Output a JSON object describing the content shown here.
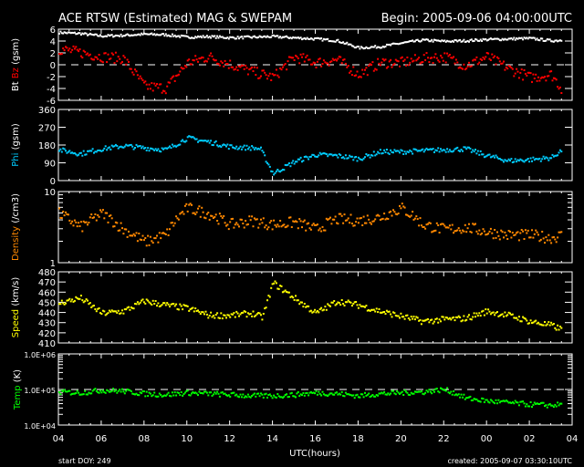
{
  "title": "ACE RTSW (Estimated) MAG & SWEPAM",
  "begin": "Begin: 2005-09-06 04:00:00UTC",
  "footer": {
    "start_doy": "start DOY: 249",
    "created": "created: 2005-09-07 03:30:10UTC"
  },
  "chart_data": [
    {
      "type": "scatter",
      "id": "mag",
      "ylabel_parts": [
        "Bt",
        "Bz",
        "(gsm)"
      ],
      "ylabel_colors": [
        "#ffffff",
        "#ff0000",
        "#ffffff"
      ],
      "ylim": [
        -6,
        6
      ],
      "scale": "linear",
      "yticks": [
        "6",
        "4",
        "2",
        "0",
        "-2",
        "-4",
        "-6"
      ],
      "ytick_values": [
        6,
        4,
        2,
        0,
        -2,
        -4,
        -6
      ],
      "reference_line": 0,
      "series": [
        {
          "name": "Bt",
          "color": "#ffffff",
          "spread": 0.2,
          "hours": [
            0,
            1,
            2,
            3,
            4,
            5,
            6,
            7,
            8,
            9,
            10,
            11,
            12,
            13,
            14,
            15,
            16,
            17,
            18,
            19,
            20,
            21,
            22,
            23,
            23.5
          ],
          "values": [
            5.6,
            5.4,
            5.0,
            5.1,
            5.3,
            5.2,
            4.8,
            4.9,
            4.7,
            4.8,
            4.9,
            4.7,
            4.5,
            4.2,
            3.0,
            3.2,
            3.8,
            4.3,
            4.1,
            4.2,
            4.4,
            4.5,
            4.6,
            4.2,
            4.3
          ]
        },
        {
          "name": "Bz",
          "color": "#ff0000",
          "spread": 0.9,
          "hours": [
            0,
            1,
            2,
            3,
            4,
            5,
            6,
            7,
            8,
            9,
            10,
            11,
            12,
            13,
            14,
            15,
            16,
            17,
            18,
            19,
            20,
            21,
            22,
            23,
            23.5
          ],
          "values": [
            2.8,
            2.2,
            1.5,
            1.2,
            -3.5,
            -3.8,
            0.5,
            1.5,
            0.2,
            -1.0,
            -2.0,
            1.5,
            0.5,
            1.0,
            -1.5,
            0.5,
            0.5,
            1.2,
            1.5,
            0.0,
            1.5,
            -0.5,
            -2.0,
            -1.5,
            -4.0
          ]
        }
      ]
    },
    {
      "type": "scatter",
      "id": "phi",
      "ylabel_parts": [
        "Phi",
        "(gsm)"
      ],
      "ylabel_colors": [
        "#00ccff",
        "#ffffff"
      ],
      "ylim": [
        0,
        360
      ],
      "scale": "linear",
      "yticks": [
        "360",
        "270",
        "180",
        "90",
        "0"
      ],
      "ytick_values": [
        360,
        270,
        180,
        90,
        0
      ],
      "series": [
        {
          "name": "Phi",
          "color": "#00ccff",
          "spread": 12,
          "hours": [
            0,
            1,
            2,
            3,
            4,
            5,
            6,
            7,
            8,
            9,
            9.4,
            10,
            11,
            12,
            13,
            14,
            15,
            16,
            17,
            18,
            19,
            20,
            21,
            22,
            23,
            23.5
          ],
          "values": [
            160,
            140,
            165,
            180,
            170,
            160,
            220,
            200,
            175,
            170,
            165,
            40,
            100,
            135,
            130,
            115,
            150,
            150,
            155,
            160,
            165,
            130,
            105,
            110,
            120,
            160
          ]
        }
      ]
    },
    {
      "type": "scatter",
      "id": "density",
      "ylabel_parts": [
        "Density",
        "(/cm3)"
      ],
      "ylabel_colors": [
        "#ff8800",
        "#ffffff"
      ],
      "ylim": [
        1,
        10
      ],
      "scale": "log",
      "yticks": [
        "10",
        "1"
      ],
      "ytick_values": [
        10,
        1
      ],
      "series": [
        {
          "name": "Density",
          "color": "#ff8800",
          "spread": 0.08,
          "hours": [
            0,
            1,
            2,
            3,
            4,
            5,
            6,
            7,
            8,
            9,
            10,
            11,
            12,
            13,
            14,
            15,
            16,
            17,
            18,
            19,
            20,
            21,
            22,
            23,
            23.5
          ],
          "values": [
            5.0,
            3.2,
            5.0,
            3.0,
            2.0,
            2.5,
            6.0,
            5.0,
            3.5,
            4.0,
            3.5,
            3.8,
            3.0,
            4.2,
            4.0,
            4.5,
            6.0,
            3.5,
            3.0,
            3.2,
            2.8,
            2.5,
            2.5,
            2.3,
            2.5
          ]
        }
      ]
    },
    {
      "type": "scatter",
      "id": "speed",
      "ylabel_parts": [
        "Speed",
        "(km/s)"
      ],
      "ylabel_colors": [
        "#ffff00",
        "#ffffff"
      ],
      "ylim": [
        410,
        480
      ],
      "scale": "linear",
      "yticks": [
        "480",
        "470",
        "460",
        "450",
        "440",
        "430",
        "420",
        "410"
      ],
      "ytick_values": [
        480,
        470,
        460,
        450,
        440,
        430,
        420,
        410
      ],
      "series": [
        {
          "name": "Speed",
          "color": "#ffff00",
          "spread": 3,
          "hours": [
            0,
            1,
            2,
            3,
            4,
            5,
            6,
            7,
            8,
            9,
            9.5,
            10,
            11,
            12,
            13,
            14,
            15,
            16,
            17,
            18,
            19,
            20,
            21,
            22,
            23,
            23.5
          ],
          "values": [
            450,
            455,
            440,
            442,
            452,
            448,
            445,
            438,
            438,
            440,
            436,
            470,
            455,
            440,
            452,
            448,
            442,
            437,
            432,
            434,
            435,
            442,
            438,
            432,
            428,
            424
          ]
        }
      ]
    },
    {
      "type": "scatter",
      "id": "temp",
      "ylabel_parts": [
        "Temp",
        "(K)"
      ],
      "ylabel_colors": [
        "#00ff00",
        "#ffffff"
      ],
      "ylim": [
        10000,
        1000000
      ],
      "scale": "log",
      "yticks": [
        "1.0E+06",
        "1.0E+05",
        "1.0E+04"
      ],
      "ytick_values": [
        1000000,
        100000,
        10000
      ],
      "reference_line": 100000,
      "series": [
        {
          "name": "Temp",
          "color": "#00ff00",
          "spread": 0.07,
          "hours": [
            0,
            1,
            2,
            3,
            4,
            5,
            6,
            7,
            8,
            9,
            10,
            11,
            12,
            13,
            14,
            15,
            16,
            17,
            18,
            19,
            20,
            21,
            22,
            23,
            23.5
          ],
          "values": [
            90000,
            85000,
            100000,
            95000,
            80000,
            75000,
            85000,
            80000,
            75000,
            70000,
            70000,
            75000,
            85000,
            80000,
            70000,
            80000,
            85000,
            90000,
            105000,
            60000,
            50000,
            45000,
            40000,
            38000,
            40000
          ]
        }
      ]
    }
  ],
  "xaxis": {
    "label": "UTC(hours)",
    "ticks": [
      "04",
      "06",
      "08",
      "10",
      "12",
      "14",
      "16",
      "18",
      "20",
      "22",
      "00",
      "02",
      "04"
    ],
    "range_hours": [
      0,
      24
    ]
  }
}
